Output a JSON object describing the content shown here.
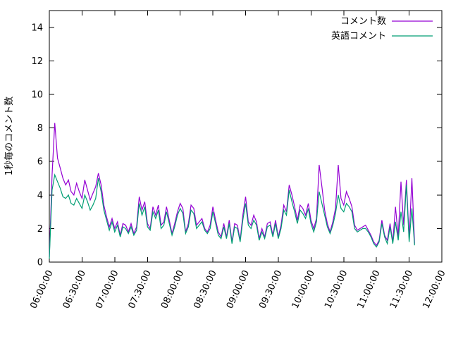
{
  "chart_data": {
    "type": "line",
    "title": "",
    "xlabel": "",
    "ylabel": "1秒毎のコメント数",
    "ylim": [
      0,
      15
    ],
    "yticks": [
      0,
      2,
      4,
      6,
      8,
      10,
      12,
      14
    ],
    "x_range": [
      "06:00:00",
      "12:00:00"
    ],
    "xtick_labels": [
      "06:00:00",
      "06:30:00",
      "07:00:00",
      "07:30:00",
      "08:00:00",
      "08:30:00",
      "09:00:00",
      "09:30:00",
      "10:00:00",
      "10:30:00",
      "11:00:00",
      "11:30:00",
      "12:00:00"
    ],
    "x_start": "06:00:00",
    "x_step_seconds": 150,
    "grid": false,
    "legend_position": "top-right",
    "series": [
      {
        "name": "コメント数",
        "color": "#9400d3",
        "values": [
          0.3,
          5.2,
          8.3,
          6.2,
          5.6,
          5.0,
          4.6,
          4.9,
          4.2,
          4.0,
          4.7,
          4.2,
          3.8,
          4.9,
          4.3,
          3.7,
          4.1,
          4.5,
          5.3,
          4.6,
          3.4,
          2.7,
          2.1,
          2.6,
          2.0,
          2.4,
          1.6,
          2.3,
          2.2,
          1.8,
          2.3,
          1.7,
          2.1,
          3.9,
          3.1,
          3.6,
          2.3,
          2.0,
          3.3,
          2.8,
          3.4,
          2.2,
          2.4,
          3.3,
          2.5,
          1.7,
          2.3,
          3.0,
          3.5,
          3.2,
          1.8,
          2.3,
          3.4,
          3.2,
          2.2,
          2.4,
          2.6,
          2.0,
          1.8,
          2.2,
          3.3,
          2.5,
          1.8,
          1.5,
          2.3,
          1.5,
          2.5,
          1.2,
          2.3,
          2.2,
          1.3,
          2.8,
          3.9,
          2.4,
          2.2,
          2.8,
          2.4,
          1.4,
          2.0,
          1.5,
          2.3,
          2.4,
          1.6,
          2.5,
          1.5,
          2.2,
          3.4,
          3.0,
          4.6,
          4.0,
          3.3,
          2.5,
          3.4,
          3.2,
          2.8,
          3.5,
          2.5,
          2.0,
          2.6,
          5.8,
          4.5,
          3.1,
          2.3,
          1.8,
          2.4,
          3.2,
          5.8,
          3.8,
          3.4,
          4.2,
          3.8,
          3.3,
          2.2,
          1.9,
          2.0,
          2.1,
          2.2,
          1.9,
          1.6,
          1.2,
          1.0,
          1.3,
          2.5,
          1.6,
          1.3,
          2.3,
          1.2,
          3.3,
          1.5,
          4.8,
          2.2,
          4.9,
          1.4,
          5.0,
          1.1
        ]
      },
      {
        "name": "英語コメント",
        "color": "#009e73",
        "values": [
          0.2,
          4.3,
          5.2,
          4.8,
          4.4,
          3.9,
          3.8,
          4.0,
          3.5,
          3.4,
          3.8,
          3.5,
          3.2,
          4.0,
          3.6,
          3.1,
          3.4,
          3.8,
          5.0,
          4.2,
          3.1,
          2.5,
          1.9,
          2.4,
          1.8,
          2.2,
          1.5,
          2.1,
          2.0,
          1.7,
          2.1,
          1.6,
          1.9,
          3.5,
          2.8,
          3.3,
          2.1,
          1.9,
          3.0,
          2.6,
          3.1,
          2.0,
          2.2,
          3.0,
          2.3,
          1.6,
          2.1,
          2.8,
          3.2,
          2.9,
          1.7,
          2.1,
          3.1,
          2.9,
          2.0,
          2.2,
          2.4,
          1.9,
          1.7,
          2.0,
          3.0,
          2.3,
          1.6,
          1.4,
          2.1,
          1.4,
          2.3,
          1.1,
          2.1,
          2.0,
          1.2,
          2.5,
          3.5,
          2.2,
          2.0,
          2.5,
          2.2,
          1.3,
          1.8,
          1.4,
          2.1,
          2.2,
          1.5,
          2.3,
          1.4,
          2.0,
          3.1,
          2.8,
          4.3,
          3.6,
          3.0,
          2.3,
          3.1,
          2.9,
          2.6,
          3.2,
          2.3,
          1.8,
          2.4,
          4.2,
          3.5,
          2.8,
          2.1,
          1.7,
          2.2,
          2.9,
          4.0,
          3.2,
          3.0,
          3.5,
          3.3,
          3.0,
          2.0,
          1.8,
          1.9,
          2.0,
          2.0,
          1.8,
          1.5,
          1.1,
          0.9,
          1.2,
          2.3,
          1.5,
          1.1,
          2.1,
          1.1,
          2.4,
          1.3,
          3.0,
          1.8,
          4.6,
          1.2,
          3.2,
          1.0
        ]
      }
    ]
  }
}
